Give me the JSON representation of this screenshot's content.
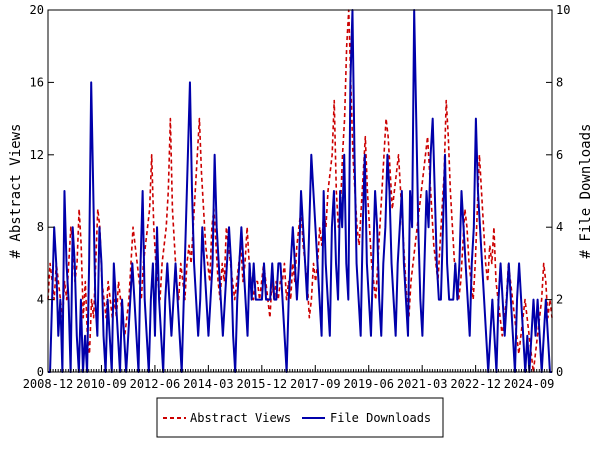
{
  "chart_data": {
    "type": "line",
    "x_start": "2008-12",
    "x_end": "2025-06",
    "x_tick_labels": [
      "2008-12",
      "2010-09",
      "2012-06",
      "2014-03",
      "2015-12",
      "2017-09",
      "2019-06",
      "2021-03",
      "2022-12",
      "2024-09"
    ],
    "ylabel_left": "# Abstract Views",
    "ylabel_right": "# File Downloads",
    "ylim_left": [
      0,
      20
    ],
    "ylim_right": [
      0,
      10
    ],
    "yticks_left": [
      "0",
      "4",
      "8",
      "12",
      "16",
      "20"
    ],
    "yticks_right": [
      "0",
      "2",
      "4",
      "6",
      "8",
      "10"
    ],
    "legend_position": "bottom-center",
    "series": [
      {
        "name": "Abstract Views",
        "axis": "left",
        "color": "#cc0000",
        "dash": true,
        "values": [
          4,
          6,
          5,
          4,
          6,
          5,
          4,
          3,
          5,
          4,
          6,
          8,
          7,
          5,
          6,
          9,
          7,
          3,
          5,
          2,
          1,
          4,
          3,
          6,
          9,
          8,
          5,
          4,
          3,
          5,
          4,
          3,
          4,
          3,
          5,
          4,
          3,
          2,
          3,
          4,
          6,
          8,
          7,
          6,
          5,
          4,
          6,
          7,
          8,
          9,
          12,
          8,
          6,
          5,
          4,
          6,
          7,
          8,
          10,
          14,
          9,
          7,
          5,
          4,
          6,
          5,
          4,
          6,
          7,
          6,
          8,
          10,
          12,
          14,
          11,
          9,
          7,
          6,
          5,
          8,
          9,
          7,
          5,
          4,
          6,
          5,
          8,
          7,
          6,
          5,
          4,
          5,
          6,
          7,
          5,
          6,
          8,
          6,
          5,
          4,
          5,
          5,
          4,
          5,
          6,
          5,
          4,
          3,
          5,
          4,
          5,
          4,
          5,
          5,
          6,
          4,
          5,
          4,
          6,
          5,
          7,
          8,
          9,
          7,
          6,
          5,
          3,
          4,
          6,
          5,
          6,
          8,
          7,
          9,
          8,
          10,
          11,
          12,
          15,
          10,
          8,
          9,
          12,
          14,
          18,
          20,
          16,
          12,
          10,
          8,
          7,
          9,
          11,
          13,
          10,
          8,
          6,
          5,
          4,
          6,
          8,
          10,
          12,
          14,
          13,
          11,
          9,
          10,
          11,
          12,
          10,
          8,
          6,
          4,
          3,
          5,
          6,
          7,
          8,
          9,
          10,
          11,
          12,
          13,
          11,
          9,
          7,
          6,
          5,
          7,
          9,
          11,
          15,
          13,
          10,
          8,
          6,
          5,
          4,
          5,
          7,
          9,
          8,
          6,
          5,
          4,
          6,
          9,
          12,
          10,
          8,
          6,
          5,
          7,
          6,
          8,
          5,
          4,
          3,
          2,
          3,
          4,
          6,
          5,
          4,
          3,
          2,
          1,
          2,
          3,
          4,
          3,
          2,
          1,
          0,
          1,
          2,
          3,
          4,
          6,
          5,
          3,
          4,
          3
        ]
      },
      {
        "name": "File Downloads",
        "axis": "right",
        "color": "#0000aa",
        "dash": false,
        "values": [
          0,
          0,
          2,
          4,
          3,
          1,
          2,
          0,
          5,
          3,
          2,
          0,
          4,
          3,
          1,
          0,
          2,
          0,
          1,
          0,
          3,
          8,
          5,
          2,
          1,
          4,
          3,
          1,
          0,
          2,
          1,
          0,
          3,
          2,
          1,
          0,
          2,
          1,
          0,
          1,
          2,
          3,
          2,
          1,
          0,
          3,
          5,
          2,
          1,
          0,
          2,
          3,
          1,
          4,
          2,
          1,
          0,
          2,
          3,
          2,
          1,
          2,
          3,
          2,
          1,
          0,
          2,
          4,
          6,
          8,
          5,
          3,
          2,
          1,
          2,
          4,
          3,
          2,
          1,
          2,
          3,
          6,
          4,
          3,
          2,
          1,
          2,
          3,
          4,
          3,
          1,
          0,
          2,
          3,
          4,
          3,
          2,
          1,
          3,
          2,
          3,
          2,
          2,
          2,
          2,
          3,
          2,
          2,
          2,
          3,
          2,
          2,
          3,
          3,
          2,
          1,
          0,
          2,
          3,
          4,
          3,
          2,
          3,
          5,
          4,
          3,
          2,
          4,
          6,
          5,
          4,
          3,
          2,
          1,
          5,
          3,
          2,
          1,
          4,
          5,
          3,
          2,
          5,
          4,
          6,
          3,
          2,
          8,
          10,
          6,
          3,
          2,
          1,
          4,
          6,
          3,
          2,
          1,
          3,
          5,
          4,
          2,
          1,
          3,
          4,
          6,
          5,
          3,
          2,
          1,
          3,
          4,
          5,
          3,
          2,
          1,
          5,
          4,
          10,
          7,
          4,
          2,
          1,
          3,
          5,
          4,
          6,
          7,
          5,
          3,
          2,
          2,
          4,
          6,
          3,
          2,
          2,
          2,
          3,
          2,
          3,
          5,
          4,
          3,
          2,
          1,
          3,
          4,
          7,
          5,
          4,
          3,
          2,
          1,
          0,
          1,
          2,
          1,
          0,
          2,
          3,
          2,
          1,
          2,
          3,
          2,
          1,
          0,
          2,
          3,
          2,
          1,
          0,
          1,
          0,
          1,
          2,
          1,
          2,
          1,
          0,
          1,
          2,
          1,
          0,
          0
        ]
      }
    ],
    "grid": false
  }
}
